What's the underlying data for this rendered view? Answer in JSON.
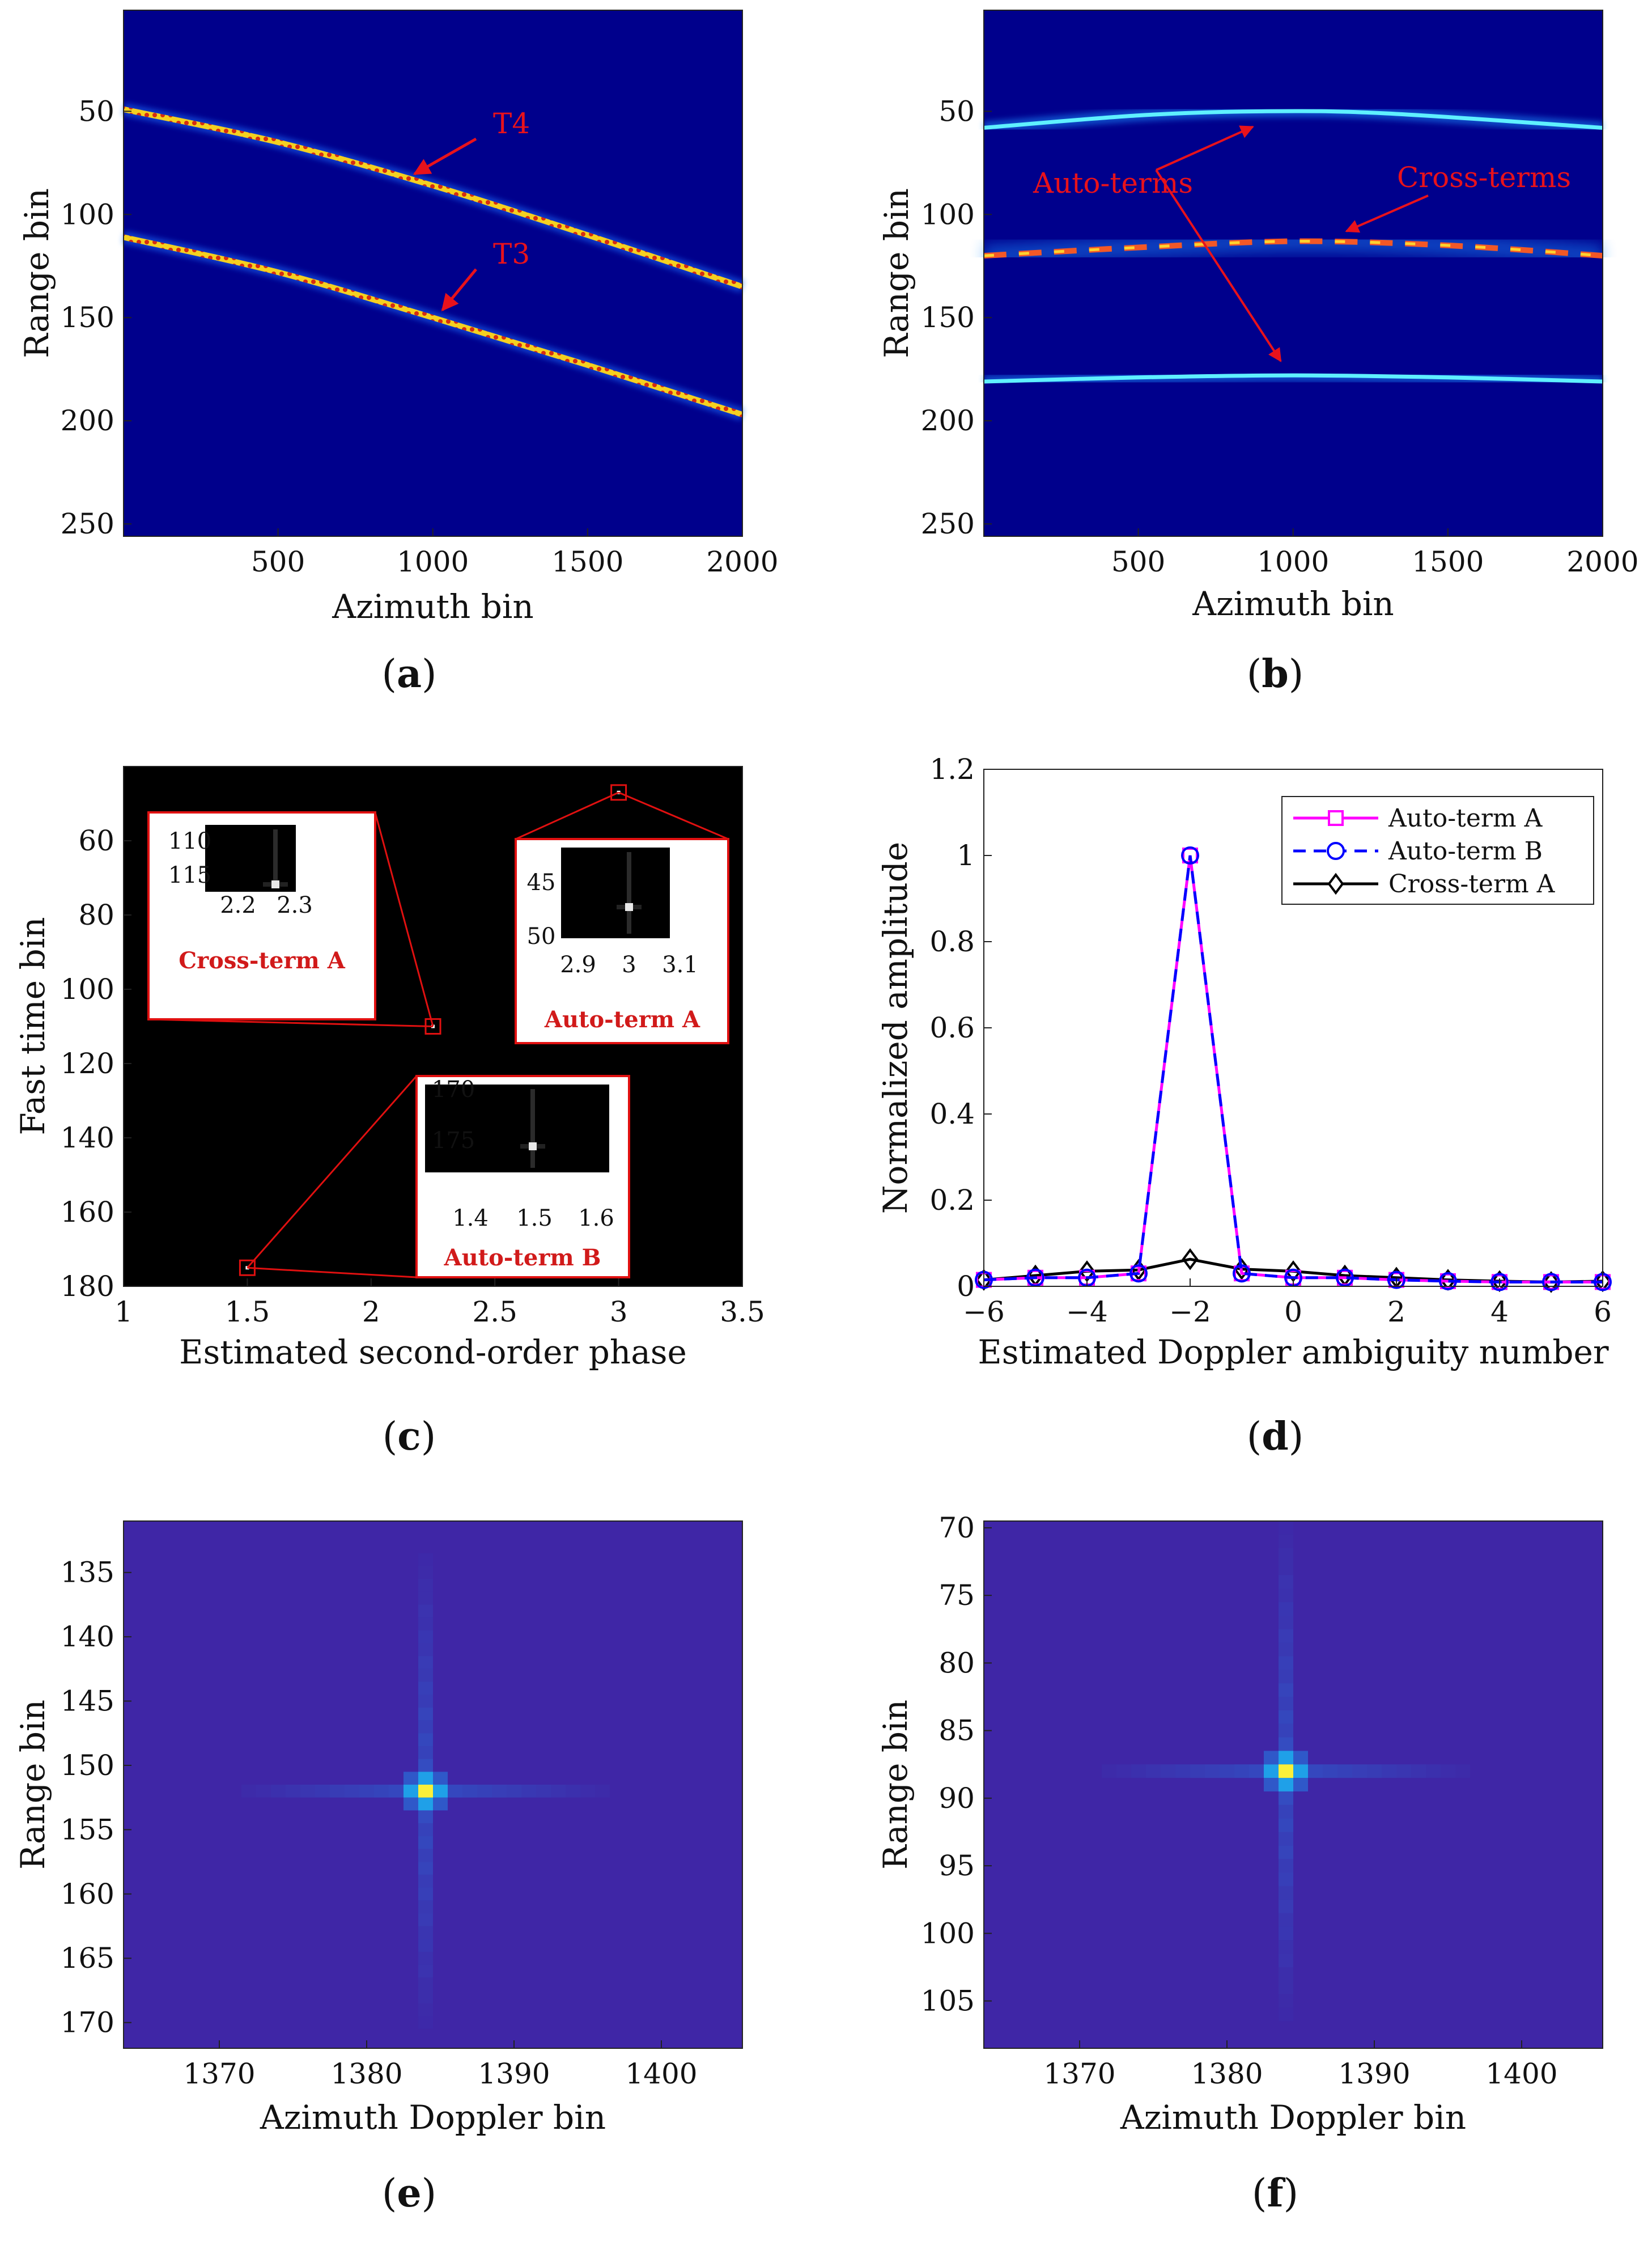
{
  "chart_data": [
    {
      "id": "a",
      "type": "heatmap",
      "caption": "a",
      "xlabel": "Azimuth bin",
      "ylabel": "Range bin",
      "xlim": [
        1,
        2000
      ],
      "ylim": [
        256,
        1
      ],
      "xticks": [
        "500",
        "1000",
        "1500",
        "2000"
      ],
      "yticks": [
        "50",
        "100",
        "150",
        "200",
        "250"
      ],
      "colormap": "jet-like",
      "tracks": [
        {
          "name": "T4",
          "points": [
            [
              1,
              49
            ],
            [
              500,
              65
            ],
            [
              1000,
              86
            ],
            [
              1500,
              110
            ],
            [
              2000,
              135
            ]
          ]
        },
        {
          "name": "T3",
          "points": [
            [
              1,
              111
            ],
            [
              500,
              128
            ],
            [
              1000,
              150
            ],
            [
              1500,
              173
            ],
            [
              2000,
              197
            ]
          ]
        }
      ],
      "annotations": [
        {
          "text": "T4",
          "target": [
            930,
            82
          ]
        },
        {
          "text": "T3",
          "target": [
            1020,
            148
          ]
        }
      ]
    },
    {
      "id": "b",
      "type": "heatmap",
      "caption": "b",
      "xlabel": "Azimuth bin",
      "ylabel": "Range bin",
      "xlim": [
        1,
        2000
      ],
      "ylim": [
        256,
        1
      ],
      "xticks": [
        "500",
        "1000",
        "1500",
        "2000"
      ],
      "yticks": [
        "50",
        "100",
        "150",
        "200",
        "250"
      ],
      "colormap": "jet-like",
      "curves": [
        {
          "name": "Auto-term upper",
          "points": [
            [
              1,
              58
            ],
            [
              500,
              52
            ],
            [
              900,
              50
            ],
            [
              1300,
              51
            ],
            [
              2000,
              58
            ]
          ]
        },
        {
          "name": "Cross-term",
          "points": [
            [
              1,
              120
            ],
            [
              500,
              116
            ],
            [
              1000,
              113
            ],
            [
              1500,
              115
            ],
            [
              2000,
              120
            ]
          ]
        },
        {
          "name": "Auto-term lower",
          "points": [
            [
              1,
              181
            ],
            [
              500,
              179
            ],
            [
              1000,
              178
            ],
            [
              1500,
              179
            ],
            [
              2000,
              181
            ]
          ]
        }
      ],
      "annotations": [
        {
          "text": "Auto-terms",
          "targets": [
            [
              870,
              52
            ],
            [
              960,
              176
            ]
          ]
        },
        {
          "text": "Cross-terms",
          "target": [
            1150,
            112
          ]
        }
      ]
    },
    {
      "id": "c",
      "type": "heatmap",
      "caption": "c",
      "xlabel": "Estimated second-order phase",
      "ylabel": "Fast time bin",
      "xlim": [
        1,
        3.5
      ],
      "ylim": [
        180,
        40
      ],
      "xticks": [
        "1",
        "1.5",
        "2",
        "2.5",
        "3",
        "3.5"
      ],
      "yticks": [
        "60",
        "80",
        "100",
        "120",
        "140",
        "160",
        "180"
      ],
      "colormap": "gray",
      "peaks": [
        {
          "name": "Cross-term A",
          "x": 2.25,
          "y": 110
        },
        {
          "name": "Auto-term A",
          "x": 3.0,
          "y": 47
        },
        {
          "name": "Auto-term B",
          "x": 1.5,
          "y": 175
        }
      ],
      "insets": [
        {
          "label": "Cross-term A",
          "xticks": [
            "2.2",
            "2.3"
          ],
          "yticks": [
            "110",
            "115"
          ]
        },
        {
          "label": "Auto-term A",
          "xticks": [
            "2.9",
            "3",
            "3.1"
          ],
          "yticks": [
            "45",
            "50"
          ]
        },
        {
          "label": "Auto-term B",
          "xticks": [
            "1.4",
            "1.5",
            "1.6"
          ],
          "yticks": [
            "170",
            "175"
          ]
        }
      ]
    },
    {
      "id": "d",
      "type": "line",
      "caption": "d",
      "xlabel": "Estimated Doppler ambiguity number",
      "ylabel": "Normalized amplitude",
      "xlim": [
        -6,
        6
      ],
      "ylim": [
        0,
        1.2
      ],
      "xticks": [
        "−6",
        "−4",
        "−2",
        "0",
        "2",
        "4",
        "6"
      ],
      "yticks": [
        "0",
        "0.2",
        "0.4",
        "0.6",
        "0.8",
        "1",
        "1.2"
      ],
      "x": [
        -6,
        -5,
        -4,
        -3,
        -2,
        -1,
        0,
        1,
        2,
        3,
        4,
        5,
        6
      ],
      "series": [
        {
          "name": "Auto-term A",
          "color": "#ff00ff",
          "marker": "square",
          "dash": "solid",
          "values": [
            0.015,
            0.02,
            0.02,
            0.03,
            1.0,
            0.03,
            0.02,
            0.02,
            0.015,
            0.012,
            0.01,
            0.01,
            0.01
          ]
        },
        {
          "name": "Auto-term B",
          "color": "#0000ff",
          "marker": "circle",
          "dash": "dashed",
          "values": [
            0.015,
            0.02,
            0.02,
            0.03,
            1.0,
            0.03,
            0.02,
            0.02,
            0.015,
            0.012,
            0.01,
            0.01,
            0.01
          ]
        },
        {
          "name": "Cross-term A",
          "color": "#000000",
          "marker": "diamond",
          "dash": "solid",
          "values": [
            0.015,
            0.025,
            0.035,
            0.038,
            0.063,
            0.04,
            0.035,
            0.025,
            0.02,
            0.015,
            0.012,
            0.01,
            0.012
          ]
        }
      ],
      "legend": "top-right"
    },
    {
      "id": "e",
      "type": "heatmap",
      "caption": "e",
      "xlabel": "Azimuth Doppler bin",
      "ylabel": "Range bin",
      "xlim": [
        1363.5,
        1405.5
      ],
      "ylim": [
        172,
        131
      ],
      "xticks": [
        "1370",
        "1380",
        "1390",
        "1400"
      ],
      "yticks": [
        "135",
        "140",
        "145",
        "150",
        "155",
        "160",
        "165",
        "170"
      ],
      "colormap": "parula",
      "peak": [
        1384,
        152
      ]
    },
    {
      "id": "f",
      "type": "heatmap",
      "caption": "f",
      "xlabel": "Azimuth Doppler bin",
      "ylabel": "Range bin",
      "xlim": [
        1363.5,
        1405.5
      ],
      "ylim": [
        108.5,
        69.5
      ],
      "xticks": [
        "1370",
        "1380",
        "1390",
        "1400"
      ],
      "yticks": [
        "70",
        "75",
        "80",
        "85",
        "90",
        "95",
        "100",
        "105"
      ],
      "colormap": "parula",
      "peak": [
        1384,
        88
      ]
    }
  ]
}
